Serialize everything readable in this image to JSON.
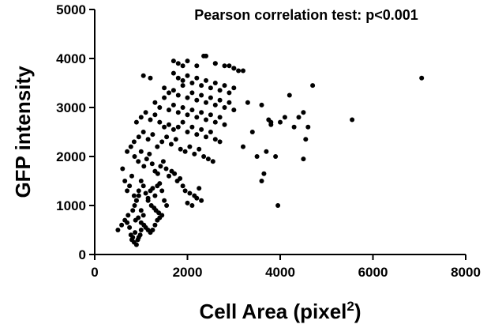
{
  "chart_data": {
    "type": "scatter",
    "xlabel": "Cell Area (pixel",
    "xlabel_superscript": "2",
    "xlabel_suffix": ")",
    "ylabel": "GFP intensity",
    "annotation": "Pearson correlation test: p<0.001",
    "xlim": [
      0,
      8000
    ],
    "ylim": [
      0,
      5000
    ],
    "xticks": [
      "0",
      "2000",
      "4000",
      "6000",
      "8000"
    ],
    "yticks": [
      "0",
      "1000",
      "2000",
      "3000",
      "4000",
      "5000"
    ],
    "grid": false,
    "marker_color": "#000000",
    "x": [
      500,
      580,
      650,
      700,
      720,
      750,
      780,
      800,
      820,
      850,
      870,
      900,
      930,
      950,
      980,
      1000,
      820,
      860,
      900,
      950,
      1000,
      1050,
      880,
      940,
      1000,
      1060,
      1100,
      1150,
      1200,
      1250,
      1300,
      1350,
      1400,
      1150,
      1220,
      1280,
      1320,
      1380,
      1450,
      600,
      650,
      700,
      750,
      800,
      850,
      900,
      950,
      1000,
      1050,
      1100,
      1150,
      1200,
      1250,
      1300,
      1350,
      1400,
      1450,
      1500,
      1550,
      700,
      780,
      860,
      940,
      1000,
      1060,
      1120,
      1180,
      1240,
      1300,
      1360,
      1420,
      1480,
      1540,
      1600,
      1660,
      1720,
      1780,
      1840,
      1900,
      850,
      950,
      1050,
      1150,
      1250,
      1350,
      1450,
      1550,
      1650,
      1750,
      1850,
      1950,
      2050,
      2150,
      2250,
      2350,
      2450,
      2550,
      900,
      1000,
      1100,
      1200,
      1300,
      1400,
      1500,
      1600,
      1700,
      1800,
      1900,
      2000,
      2100,
      2200,
      2300,
      2400,
      2500,
      2600,
      2700,
      1300,
      1400,
      1500,
      1600,
      1700,
      1800,
      1900,
      2000,
      2100,
      2200,
      2300,
      2400,
      2500,
      2600,
      2700,
      2800,
      1500,
      1600,
      1700,
      1800,
      1900,
      2000,
      2100,
      2200,
      2300,
      2400,
      2500,
      2600,
      2700,
      2800,
      2900,
      3000,
      1700,
      1800,
      1900,
      2000,
      2100,
      2200,
      2300,
      2400,
      2500,
      2600,
      2700,
      2800,
      2900,
      3000,
      1800,
      2000,
      2200,
      2400,
      2600,
      2800,
      3000,
      3200,
      1050,
      1200,
      1700,
      1900,
      2350,
      2600,
      2900,
      3000,
      3100,
      2000,
      2100,
      2200,
      2300,
      1950,
      2050,
      2150,
      2250,
      3200,
      3400,
      3500,
      3600,
      3700,
      3800,
      3900,
      4000,
      4100,
      4300,
      4400,
      4500,
      4600,
      3300,
      3600,
      3750,
      3800,
      4200,
      4500,
      3650,
      3950,
      4550,
      4700,
      5550,
      7050
    ],
    "y": [
      500,
      600,
      700,
      650,
      800,
      550,
      400,
      300,
      350,
      250,
      450,
      200,
      300,
      350,
      400,
      500,
      900,
      1000,
      1100,
      1200,
      900,
      800,
      700,
      750,
      650,
      600,
      550,
      500,
      450,
      500,
      600,
      700,
      750,
      1100,
      1000,
      950,
      900,
      850,
      800,
      1750,
      1500,
      1300,
      1400,
      1600,
      1200,
      1100,
      1300,
      1500,
      1400,
      1250,
      1150,
      1300,
      1350,
      1200,
      1400,
      1450,
      1300,
      1100,
      1000,
      2100,
      2200,
      2000,
      1900,
      2100,
      1800,
      1950,
      2050,
      1850,
      1700,
      1650,
      1800,
      1900,
      1750,
      1600,
      1700,
      1650,
      1500,
      1550,
      1400,
      2300,
      2400,
      2500,
      2350,
      2450,
      2200,
      2300,
      2400,
      2250,
      2350,
      2150,
      2100,
      2200,
      2050,
      2150,
      2000,
      1950,
      1900,
      2700,
      2800,
      2900,
      2750,
      2850,
      2700,
      2600,
      2650,
      2550,
      2600,
      2700,
      2500,
      2600,
      2450,
      2550,
      2400,
      2500,
      2350,
      2300,
      3100,
      3000,
      3200,
      2950,
      3050,
      2900,
      3000,
      2850,
      2950,
      2800,
      2900,
      2750,
      2850,
      2700,
      2800,
      2650,
      3400,
      3300,
      3350,
      3250,
      3450,
      3200,
      3300,
      3150,
      3250,
      3100,
      3200,
      3050,
      3150,
      3000,
      3100,
      2950,
      3700,
      3600,
      3550,
      3650,
      3500,
      3600,
      3450,
      3550,
      3400,
      3500,
      3350,
      3450,
      3300,
      3400,
      3900,
      3950,
      3850,
      4050,
      3900,
      3850,
      3800,
      3750,
      3650,
      3600,
      3950,
      3850,
      4050,
      3900,
      3850,
      3800,
      3750,
      1050,
      1000,
      1150,
      1100,
      1300,
      1250,
      1200,
      1350,
      2200,
      2500,
      2000,
      1500,
      2100,
      2650,
      2000,
      2700,
      2800,
      2600,
      2800,
      1950,
      2600,
      3100,
      3050,
      2750,
      2700,
      3250,
      2900,
      1650,
      1000,
      2350,
      3450,
      2750,
      3600
    ]
  }
}
